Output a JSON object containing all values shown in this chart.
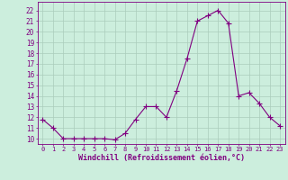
{
  "x": [
    0,
    1,
    2,
    3,
    4,
    5,
    6,
    7,
    8,
    9,
    10,
    11,
    12,
    13,
    14,
    15,
    16,
    17,
    18,
    19,
    20,
    21,
    22,
    23
  ],
  "y": [
    11.8,
    11.0,
    10.0,
    10.0,
    10.0,
    10.0,
    10.0,
    9.9,
    10.5,
    11.8,
    13.0,
    13.0,
    12.0,
    14.5,
    17.5,
    21.0,
    21.5,
    22.0,
    20.8,
    14.0,
    14.3,
    13.3,
    12.0,
    11.2
  ],
  "line_color": "#800080",
  "marker": "+",
  "marker_size": 4,
  "bg_color": "#cceedd",
  "grid_color": "#aaccbb",
  "xlabel": "Windchill (Refroidissement éolien,°C)",
  "xlabel_color": "#800080",
  "ylabel_ticks": [
    10,
    11,
    12,
    13,
    14,
    15,
    16,
    17,
    18,
    19,
    20,
    21,
    22
  ],
  "ylim": [
    9.5,
    22.8
  ],
  "xlim": [
    -0.5,
    23.5
  ],
  "xtick_labels": [
    "0",
    "1",
    "2",
    "3",
    "4",
    "5",
    "6",
    "7",
    "8",
    "9",
    "10",
    "11",
    "12",
    "13",
    "14",
    "15",
    "16",
    "17",
    "18",
    "19",
    "20",
    "21",
    "22",
    "23"
  ],
  "tick_color": "#800080",
  "ytick_fontsize": 5.5,
  "xtick_fontsize": 5.0,
  "xlabel_fontsize": 6.0
}
